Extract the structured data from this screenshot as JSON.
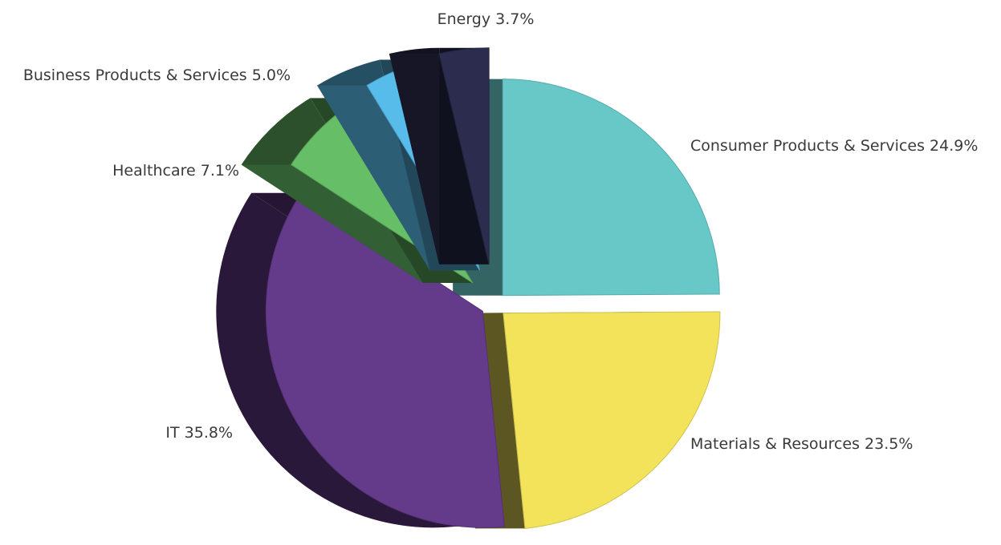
{
  "chart_data": {
    "type": "pie",
    "variant": "3d-exploded",
    "title": "",
    "legend": "none",
    "slices": [
      {
        "label": "Consumer Products & Services",
        "value": 24.9,
        "display": "Consumer Products & Services 24.9%",
        "color": "#68C8C8"
      },
      {
        "label": "Materials & Resources",
        "value": 23.5,
        "display": "Materials & Resources 23.5%",
        "color": "#F2E35A"
      },
      {
        "label": "IT",
        "value": 35.8,
        "display": "IT 35.8%",
        "color": "#643A8A"
      },
      {
        "label": "Healthcare",
        "value": 7.1,
        "display": "Healthcare 7.1%",
        "color": "#66BE67"
      },
      {
        "label": "Business Products & Services",
        "value": 5.0,
        "display": "Business Products & Services 5.0%",
        "color": "#58BCEA"
      },
      {
        "label": "Energy",
        "value": 3.7,
        "display": "Energy 3.7%",
        "color": "#2B2C4E"
      }
    ]
  }
}
